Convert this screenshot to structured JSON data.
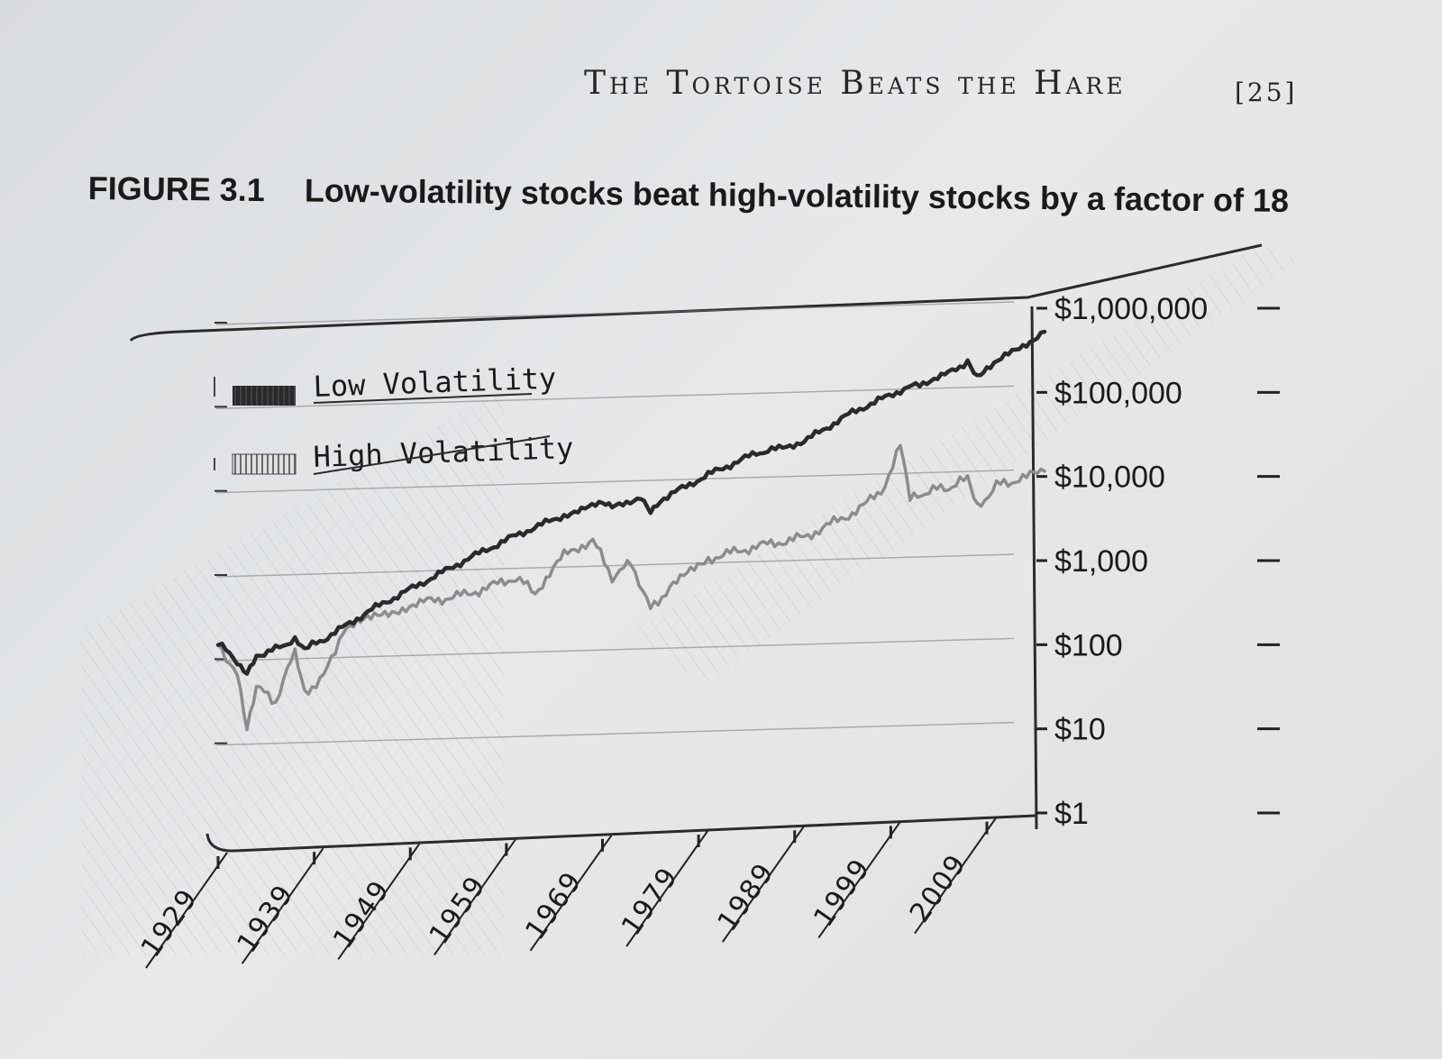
{
  "page": {
    "running_head": "The Tortoise Beats the Hare",
    "page_number": "[25]"
  },
  "figure": {
    "label": "FIGURE 3.1",
    "title": "Low-volatility stocks beat high-volatility stocks by a factor of 18"
  },
  "chart_data": {
    "type": "line",
    "title": "Low-volatility stocks beat high-volatility stocks by a factor of 18",
    "xlabel": "",
    "ylabel": "",
    "x_scale": "linear",
    "y_scale": "log",
    "xlim": [
      1929,
      2015
    ],
    "ylim": [
      1,
      1000000
    ],
    "x_ticks": [
      1929,
      1939,
      1949,
      1959,
      1969,
      1979,
      1989,
      1999,
      2009
    ],
    "x_tick_labels": [
      "1929",
      "1939",
      "1949",
      "1959",
      "1969",
      "1979",
      "1989",
      "1999",
      "2009"
    ],
    "y_ticks": [
      1,
      10,
      100,
      1000,
      10000,
      100000,
      1000000
    ],
    "y_tick_labels": [
      "$1",
      "$10",
      "$100",
      "$1,000",
      "$10,000",
      "$100,000",
      "$1,000,000"
    ],
    "legend_position": "top-left",
    "grid": true,
    "series": [
      {
        "name": "Low Volatility",
        "color": "#2a2a2a",
        "x": [
          1929,
          1931,
          1932,
          1933,
          1935,
          1937,
          1938,
          1940,
          1945,
          1950,
          1955,
          1960,
          1965,
          1969,
          1970,
          1973,
          1974,
          1975,
          1980,
          1985,
          1987,
          1990,
          1995,
          2000,
          2002,
          2005,
          2007,
          2008,
          2009,
          2012,
          2015
        ],
        "y": [
          100,
          60,
          45,
          70,
          85,
          110,
          85,
          110,
          250,
          500,
          1000,
          1900,
          3300,
          4500,
          4000,
          5500,
          3800,
          5000,
          10000,
          18000,
          20000,
          25000,
          55000,
          100000,
          120000,
          160000,
          220000,
          150000,
          190000,
          300000,
          500000
        ]
      },
      {
        "name": "High Volatility",
        "color": "#8c8c8c",
        "x": [
          1929,
          1931,
          1932,
          1933,
          1935,
          1937,
          1938,
          1940,
          1942,
          1946,
          1950,
          1955,
          1960,
          1962,
          1965,
          1968,
          1970,
          1972,
          1974,
          1976,
          1980,
          1985,
          1990,
          1995,
          1998,
          2000,
          2001,
          2003,
          2005,
          2007,
          2008,
          2010,
          2012,
          2015
        ],
        "y": [
          100,
          40,
          9,
          30,
          20,
          80,
          25,
          40,
          140,
          220,
          300,
          380,
          600,
          400,
          1100,
          1700,
          600,
          900,
          250,
          450,
          1000,
          1400,
          1800,
          3500,
          6000,
          22000,
          5000,
          6500,
          7000,
          9000,
          4000,
          7500,
          8500,
          11000
        ]
      }
    ]
  }
}
